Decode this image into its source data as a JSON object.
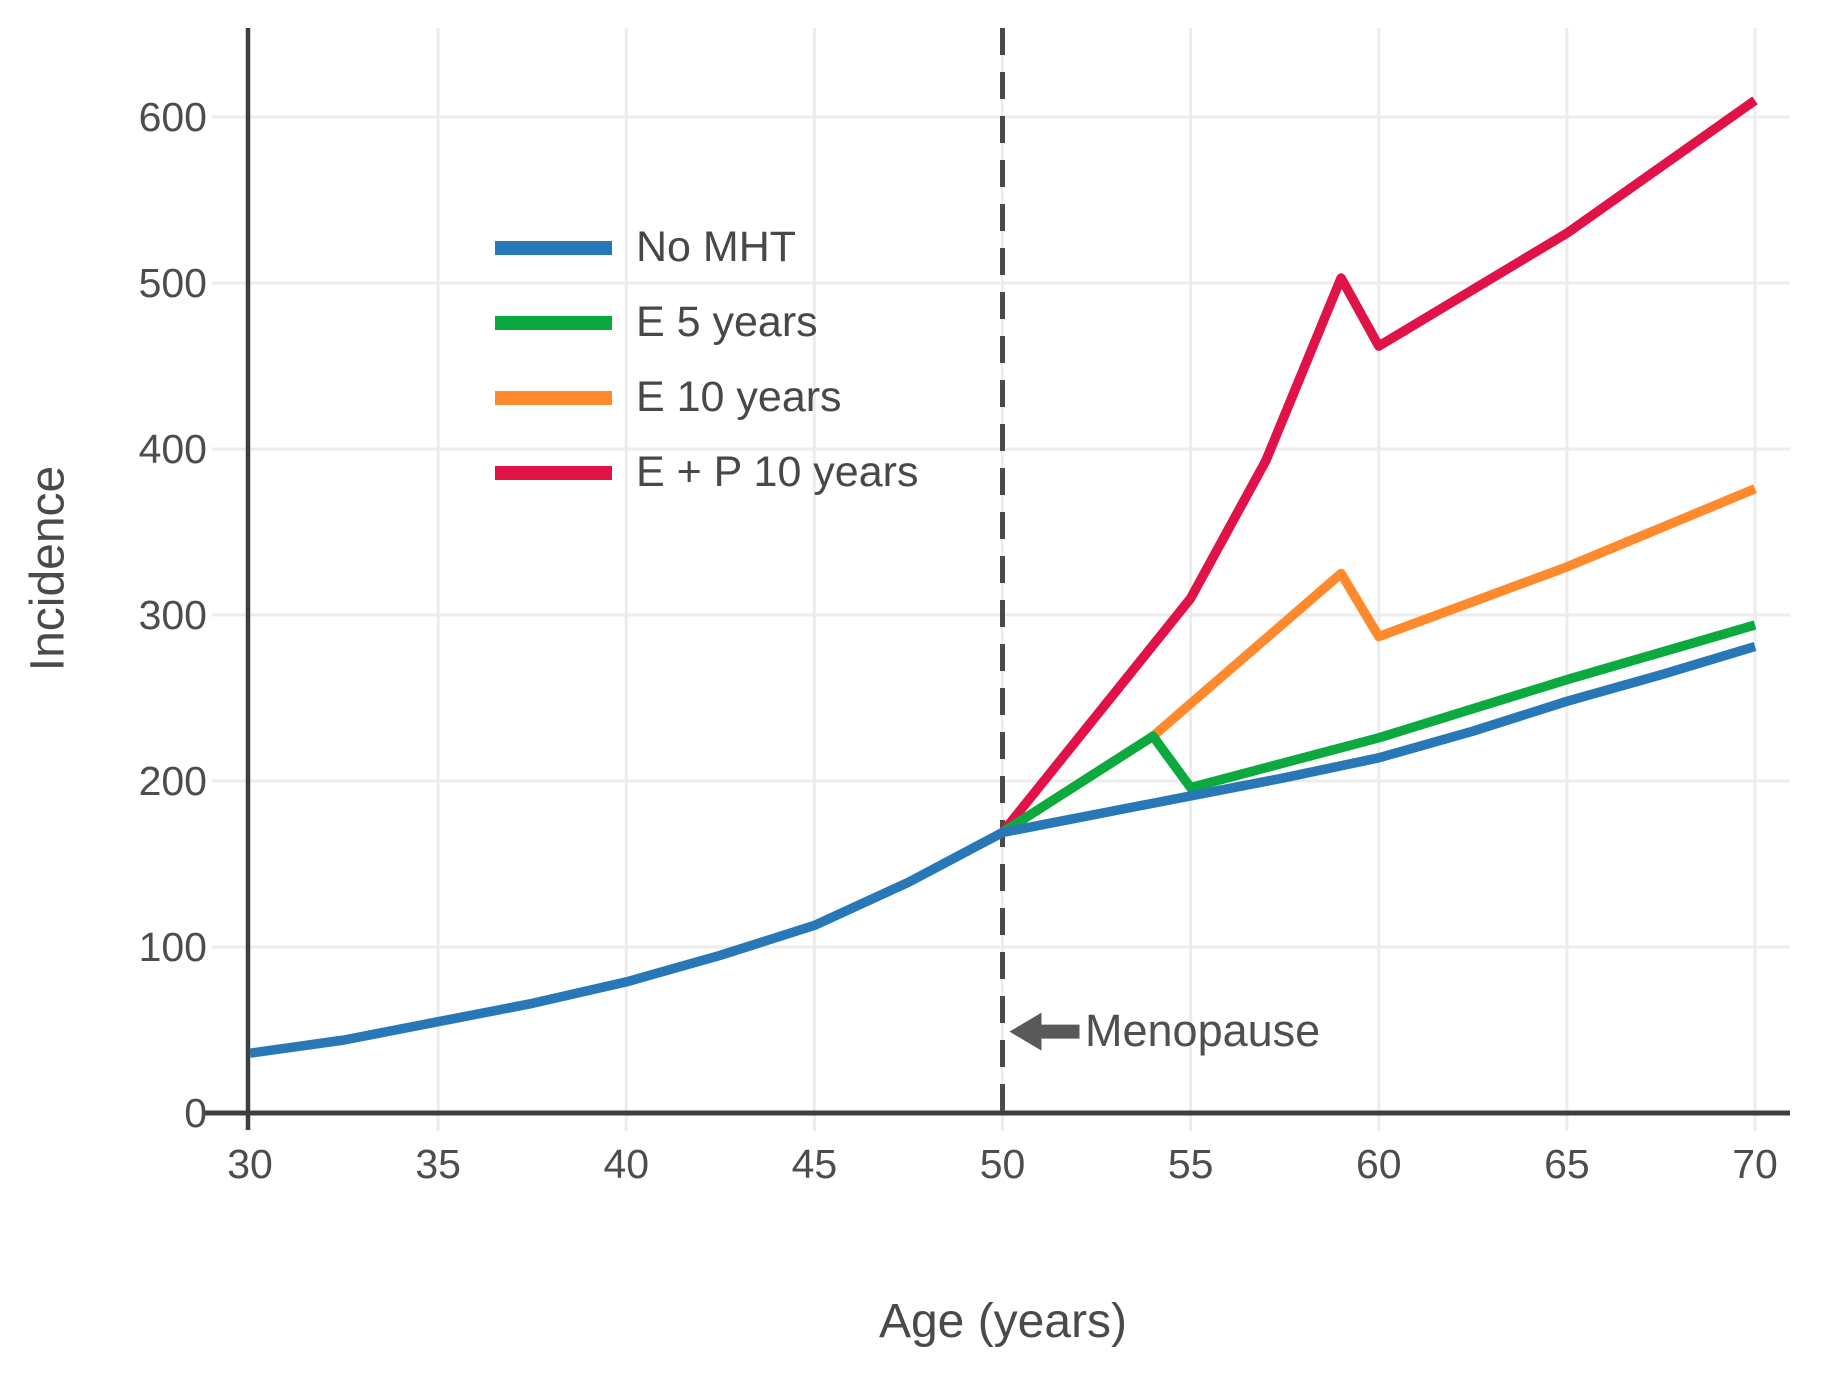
{
  "chart_data": {
    "type": "line",
    "title": "",
    "xlabel": "Age (years)",
    "ylabel": "Incidence",
    "xlim": [
      30,
      70
    ],
    "ylim": [
      0,
      650
    ],
    "xticks": [
      30,
      35,
      40,
      45,
      50,
      55,
      60,
      65,
      70
    ],
    "yticks": [
      0,
      100,
      200,
      300,
      400,
      500,
      600
    ],
    "grid": true,
    "legend_position": "upper-left-inside",
    "series": [
      {
        "name": "No MHT",
        "color": "#2878b8",
        "points": [
          [
            30,
            36
          ],
          [
            32.5,
            44
          ],
          [
            35,
            55
          ],
          [
            37.5,
            66
          ],
          [
            40,
            79
          ],
          [
            42.5,
            95
          ],
          [
            45,
            113
          ],
          [
            47.5,
            139
          ],
          [
            50,
            169
          ],
          [
            52.5,
            180
          ],
          [
            55,
            191
          ],
          [
            57.5,
            202
          ],
          [
            60,
            214
          ],
          [
            62.5,
            230
          ],
          [
            65,
            248
          ],
          [
            67.5,
            264
          ],
          [
            70,
            281
          ]
        ]
      },
      {
        "name": "E 5 years",
        "color": "#0caa3e",
        "points": [
          [
            50,
            169
          ],
          [
            54,
            227
          ],
          [
            55,
            196
          ],
          [
            60,
            226
          ],
          [
            65,
            261
          ],
          [
            70,
            294
          ]
        ]
      },
      {
        "name": "E 10 years",
        "color": "#ff8a2e",
        "points": [
          [
            50,
            169
          ],
          [
            54,
            227
          ],
          [
            59,
            325
          ],
          [
            60,
            287
          ],
          [
            65,
            329
          ],
          [
            70,
            376
          ]
        ]
      },
      {
        "name": "E + P 10 years",
        "color": "#e01248",
        "points": [
          [
            50,
            169
          ],
          [
            55,
            310
          ],
          [
            57,
            393
          ],
          [
            59,
            503
          ],
          [
            60,
            462
          ],
          [
            65,
            530
          ],
          [
            70,
            610
          ]
        ]
      }
    ],
    "vline": {
      "x": 50,
      "style": "dashed",
      "color": "#4a4a4a"
    },
    "annotations": [
      {
        "text": "Menopause",
        "x": 50,
        "y": 49,
        "arrow": "left"
      }
    ],
    "colors": {
      "grid": "#ececec",
      "axis": "#3e3e3e",
      "tick_text": "#4d4d4d"
    }
  }
}
